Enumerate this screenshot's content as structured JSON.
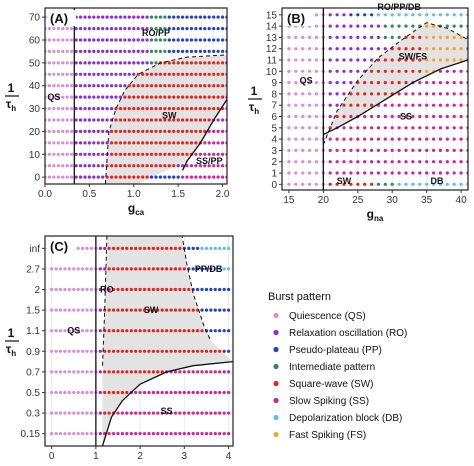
{
  "colors": {
    "QS": "#d98fd9",
    "RO": "#8a2be2",
    "PP": "#1f3fd6",
    "IP": "#2e8b57",
    "SW": "#e8231c",
    "SS": "#d6248f",
    "DB": "#5bc2e7",
    "FS": "#f5a623",
    "shade": "#e3e3e3"
  },
  "legend": {
    "title": "Burst pattern",
    "items": [
      {
        "key": "QS",
        "label": "Quiescence (QS)"
      },
      {
        "key": "RO",
        "label": "Relaxation oscillation (RO)"
      },
      {
        "key": "PP",
        "label": "Pseudo-plateau (PP)"
      },
      {
        "key": "IP",
        "label": "Intemediate pattern"
      },
      {
        "key": "SW",
        "label": "Square-wave (SW)"
      },
      {
        "key": "SS",
        "label": "Slow Spiking (SS)"
      },
      {
        "key": "DB",
        "label": "Depolarization block (DB)"
      },
      {
        "key": "FS",
        "label": "Fast Spiking (FS)"
      }
    ]
  },
  "chart_data": [
    {
      "panel": "(A)",
      "type": "scatter",
      "xlabel": "g",
      "xlabel_sub": "ca",
      "ylabel": "1",
      "ylabel_den": "τ",
      "ylabel_sub": "h",
      "xlim": [
        0,
        2.05
      ],
      "ylim": [
        -3,
        74
      ],
      "xticks": [
        0,
        0.5,
        1.0,
        1.5,
        2.0
      ],
      "xtick_labels": [
        "0.0",
        "0.5",
        "1.0",
        "1.5",
        "2.0"
      ],
      "yticks": [
        0,
        10,
        20,
        30,
        40,
        50,
        60,
        70
      ],
      "ytick_labels": [
        "0",
        "10",
        "20",
        "30",
        "40",
        "50",
        "60",
        "70"
      ],
      "x_points": {
        "start": 0,
        "end": 2.05,
        "step": 0.05
      },
      "y_rows": [
        0,
        5,
        10,
        15,
        20,
        25,
        30,
        35,
        40,
        45,
        50,
        55,
        60,
        65,
        70
      ],
      "vline": 0.33,
      "boundaries": {
        "shaded_top": [
          [
            0.68,
            -3
          ],
          [
            0.72,
            20
          ],
          [
            0.8,
            30
          ],
          [
            0.9,
            38
          ],
          [
            1.05,
            45
          ],
          [
            1.3,
            50
          ],
          [
            1.6,
            52.5
          ],
          [
            2.05,
            53.5
          ]
        ],
        "shaded_bottom": [
          [
            2.05,
            34
          ],
          [
            1.9,
            25
          ],
          [
            1.8,
            17
          ],
          [
            1.6,
            7
          ],
          [
            1.2,
            0
          ],
          [
            1.05,
            -3
          ]
        ],
        "solid": [
          [
            1.55,
            3
          ],
          [
            1.6,
            7
          ],
          [
            1.75,
            15
          ],
          [
            1.9,
            25
          ],
          [
            2.05,
            34
          ]
        ]
      },
      "rules": [
        {
          "x_max": 0.33,
          "label": "QS"
        },
        {
          "region": "shaded",
          "label": "SW"
        },
        {
          "y_min": 50,
          "x_min": 1.4,
          "label": "PP"
        },
        {
          "y_min": 47,
          "x_min": 1.2,
          "label": "IP"
        },
        {
          "below_solid": true,
          "label": "SS"
        },
        {
          "y_max": 2,
          "x_min": 1.05,
          "label": "PP"
        },
        {
          "default": "RO"
        }
      ],
      "annotations": [
        {
          "text": "QS",
          "x": 0.1,
          "y": 35
        },
        {
          "text": "RO/PP",
          "x": 1.25,
          "y": 63
        },
        {
          "text": "SW",
          "x": 1.4,
          "y": 27
        },
        {
          "text": "SS/PP",
          "x": 1.85,
          "y": 7
        }
      ]
    },
    {
      "panel": "(B)",
      "type": "scatter",
      "xlabel": "g",
      "xlabel_sub": "na",
      "ylabel": "1",
      "ylabel_den": "τ",
      "ylabel_sub": "h",
      "xlim": [
        14,
        41
      ],
      "ylim": [
        -0.5,
        15.6
      ],
      "xticks": [
        15,
        20,
        25,
        30,
        35,
        40
      ],
      "xtick_labels": [
        "15",
        "20",
        "25",
        "30",
        "35",
        "40"
      ],
      "yticks": [
        0,
        1,
        2,
        3,
        4,
        5,
        6,
        7,
        8,
        9,
        10,
        11,
        12,
        13,
        14,
        15
      ],
      "ytick_labels": [
        "0",
        "1",
        "2",
        "3",
        "4",
        "5",
        "6",
        "7",
        "8",
        "9",
        "10",
        "11",
        "12",
        "13",
        "14",
        "15"
      ],
      "x_points": {
        "start": 15,
        "end": 41,
        "step": 1
      },
      "y_rows": [
        0,
        1,
        2,
        3,
        4,
        5,
        6,
        7,
        8,
        9,
        10,
        11,
        12,
        13,
        14,
        15
      ],
      "vline": 20,
      "boundaries": {
        "shaded_top": [
          [
            20,
            3.5
          ],
          [
            22,
            6.5
          ],
          [
            25,
            9.2
          ],
          [
            28,
            11.2
          ],
          [
            31,
            12.6
          ],
          [
            34,
            13.9
          ],
          [
            35,
            14.3
          ],
          [
            38,
            13.8
          ],
          [
            41,
            12.8
          ]
        ],
        "shaded_bottom": [
          [
            41,
            11
          ],
          [
            37,
            10.2
          ],
          [
            33,
            9
          ],
          [
            29,
            7.5
          ],
          [
            25,
            6
          ],
          [
            22,
            5
          ],
          [
            20,
            4.4
          ]
        ],
        "solid": [
          [
            20,
            4.4
          ],
          [
            22,
            5
          ],
          [
            25,
            6
          ],
          [
            29,
            7.5
          ],
          [
            33,
            9
          ],
          [
            37,
            10.2
          ],
          [
            41,
            11
          ]
        ]
      },
      "rules": [
        {
          "x_max": 20,
          "label": "QS"
        },
        {
          "y_max": 0.1,
          "x_min": 31,
          "label": "DB"
        },
        {
          "y_max": 0.1,
          "x_min": 28,
          "label": "IP"
        },
        {
          "y_max": 0.1,
          "label": "SW"
        },
        {
          "region": "shaded",
          "x_min": 35,
          "label": "FS"
        },
        {
          "region": "shaded",
          "label": "SW"
        },
        {
          "below_solid": true,
          "label": "SS"
        },
        {
          "y_min": 14.5,
          "x_min": 28,
          "label": "DB"
        },
        {
          "y_min": 14.5,
          "x_min": 24,
          "label": "PP"
        },
        {
          "y_min": 12.5,
          "x_min": 29,
          "label": "IP"
        },
        {
          "default": "RO"
        }
      ],
      "annotations": [
        {
          "text": "QS",
          "x": 17.5,
          "y": 9.2
        },
        {
          "text": "RO/PP/DB",
          "x": 31,
          "y": 15.7
        },
        {
          "text": "SW/FS",
          "x": 33,
          "y": 11.3
        },
        {
          "text": "SS",
          "x": 32,
          "y": 6
        },
        {
          "text": "SW",
          "x": 23,
          "y": 0.3
        },
        {
          "text": "DB",
          "x": 36.5,
          "y": 0.3
        }
      ]
    },
    {
      "panel": "(C)",
      "type": "scatter",
      "xlabel": "g",
      "xlabel_sub": "ca",
      "ylabel": "1",
      "ylabel_den": "τ",
      "ylabel_sub": "h",
      "xlim": [
        -0.15,
        4.1
      ],
      "ylim": [
        -0.6,
        9.6
      ],
      "xticks": [
        0,
        1,
        2,
        3,
        4
      ],
      "xtick_labels": [
        "0",
        "1",
        "2",
        "3",
        "4"
      ],
      "yticks": [
        0,
        1,
        2,
        3,
        4,
        5,
        6,
        7,
        8,
        9
      ],
      "ytick_labels": [
        "0.15",
        "0.3",
        "0.5",
        "0.7",
        "0.9",
        "1.1",
        "1.5",
        "2",
        "2.7",
        "inf"
      ],
      "x_points": {
        "start": 0,
        "end": 4,
        "step": 0.1
      },
      "y_rows": [
        0,
        1,
        2,
        3,
        4,
        5,
        6,
        7,
        8,
        9
      ],
      "vline": 1.0,
      "boundaries": {
        "shaded_top": [
          [
            1.15,
            3.3
          ],
          [
            1.2,
            6
          ],
          [
            1.25,
            9.6
          ],
          [
            2.95,
            9.6
          ],
          [
            3.05,
            8.3
          ],
          [
            3.2,
            6.8
          ],
          [
            3.45,
            5.2
          ],
          [
            3.6,
            4.5
          ]
        ],
        "shaded_bottom": [
          [
            4.1,
            3.5
          ],
          [
            3.2,
            3.3
          ],
          [
            2.6,
            3.0
          ],
          [
            2.0,
            2.4
          ],
          [
            1.6,
            1.6
          ],
          [
            1.35,
            0.8
          ],
          [
            1.15,
            -0.6
          ]
        ],
        "solid": [
          [
            1.15,
            -0.6
          ],
          [
            1.35,
            0.8
          ],
          [
            1.6,
            1.6
          ],
          [
            2.0,
            2.4
          ],
          [
            2.6,
            3.0
          ],
          [
            3.2,
            3.3
          ],
          [
            4.1,
            3.5
          ]
        ]
      },
      "rules": [
        {
          "x_max": 1.0,
          "label": "QS"
        },
        {
          "below_solid": true,
          "label": "SS"
        },
        {
          "region": "shaded",
          "label": "SW"
        },
        {
          "y_min": 7.5,
          "x_min": 3.7,
          "label": "DB"
        },
        {
          "y_min": 8.5,
          "x_min": 3.4,
          "label": "DB"
        },
        {
          "x_min": 3.0,
          "label": "PP"
        },
        {
          "x_min": 2.95,
          "y_min": 5,
          "label": "IP"
        },
        {
          "default": "RO"
        }
      ],
      "annotations": [
        {
          "text": "QS",
          "x": 0.5,
          "y": 5
        },
        {
          "text": "RO",
          "x": 1.25,
          "y": 7
        },
        {
          "text": "SW",
          "x": 2.25,
          "y": 6
        },
        {
          "text": "SS",
          "x": 2.6,
          "y": 1.1
        },
        {
          "text": "PP/DB",
          "x": 3.55,
          "y": 8
        }
      ]
    }
  ]
}
